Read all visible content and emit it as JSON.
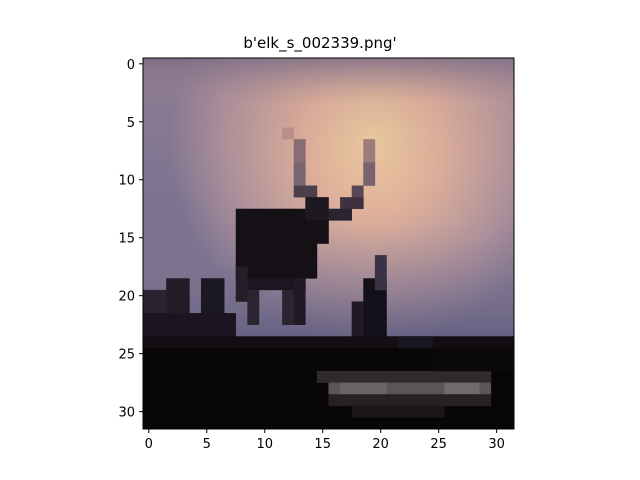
{
  "figure": {
    "title": "b'elk_s_002339.png'"
  },
  "image": {
    "description_tag": "pixelated-elk-silhouette-at-sunset",
    "grid_size": 32,
    "palette": {
      "sky_top": "#8e7a8c",
      "sky_glow": "#f3c89b",
      "sky_mid": "#c99a93",
      "sky_low": "#6d6a86",
      "silhouette": "#141016",
      "ground": "#090607",
      "reflection": "#5a5557"
    }
  },
  "axes": {
    "x_ticks": [
      "0",
      "5",
      "10",
      "15",
      "20",
      "25",
      "30"
    ],
    "y_ticks": [
      "0",
      "5",
      "10",
      "15",
      "20",
      "25",
      "30"
    ],
    "xlim": [
      -0.5,
      31.5
    ],
    "ylim": [
      31.5,
      -0.5
    ]
  }
}
